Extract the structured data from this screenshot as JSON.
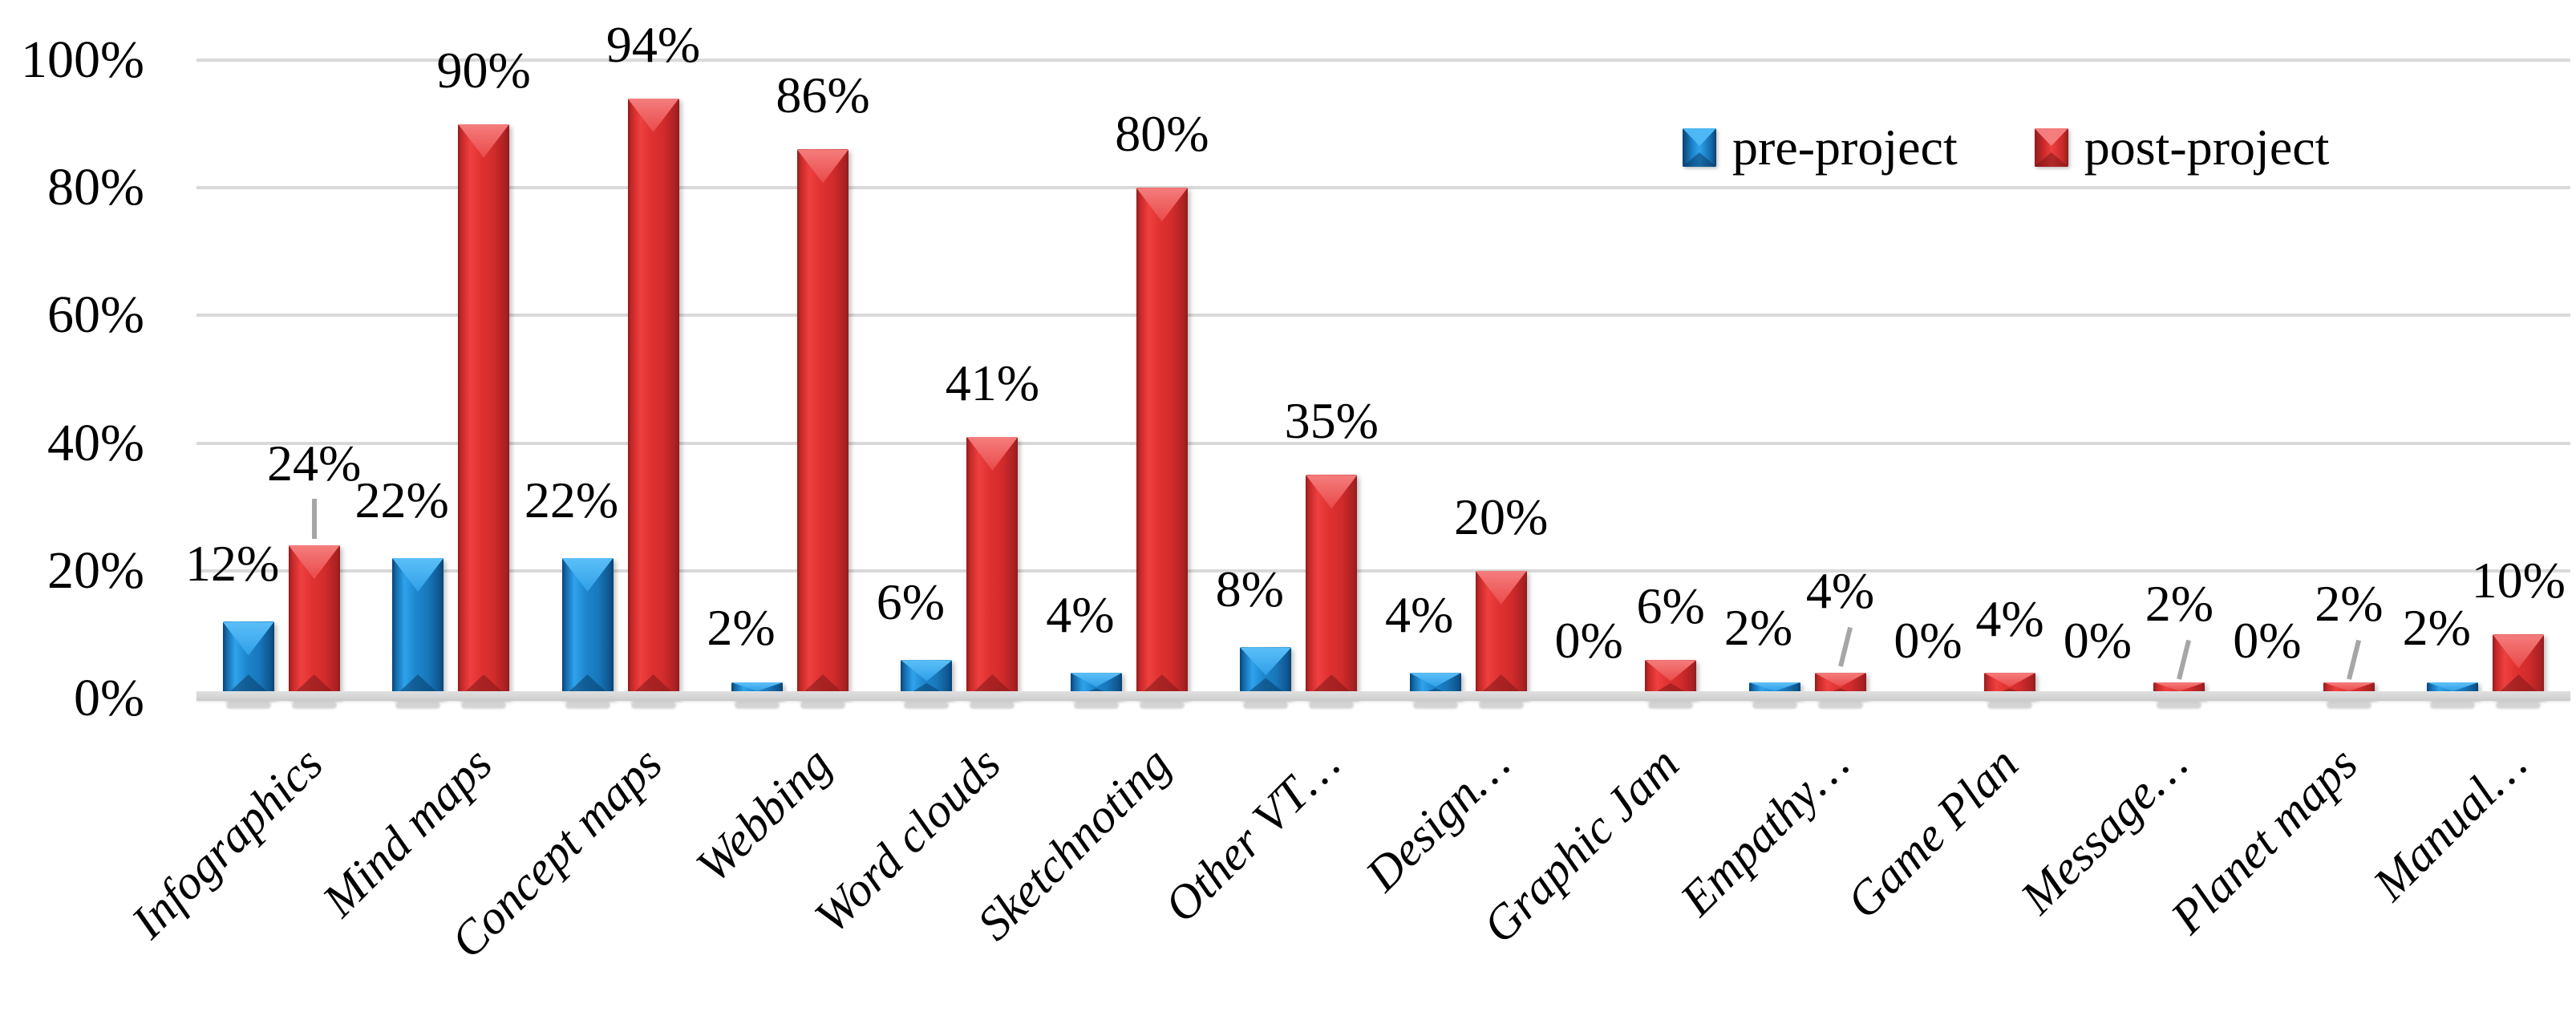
{
  "chart_data": {
    "type": "bar",
    "title": "",
    "categories": [
      "Infographics",
      "Mind maps",
      "Concept maps",
      "Webbing",
      "Word clouds",
      "Sketchnoting",
      "Other VT…",
      "Design…",
      "Graphic Jam",
      "Empathy…",
      "Game Plan",
      "Message…",
      "Planet maps",
      "Manual…"
    ],
    "series": [
      {
        "name": "pre-project",
        "color": "#1b80c4",
        "values": [
          12,
          22,
          22,
          2,
          6,
          4,
          8,
          4,
          0,
          2,
          0,
          0,
          0,
          2
        ]
      },
      {
        "name": "post-project",
        "color": "#d92f2f",
        "values": [
          24,
          90,
          94,
          86,
          41,
          80,
          35,
          20,
          6,
          4,
          4,
          2,
          2,
          10
        ]
      }
    ],
    "value_suffix": "%",
    "data_labels_shown": true,
    "yticks": [
      "0%",
      "20%",
      "40%",
      "60%",
      "80%",
      "100%"
    ],
    "ylim": [
      0,
      100
    ],
    "grid": "horizontal",
    "gridline_color": "#d9d9d9",
    "legend_position": "top-right",
    "post_leader_line_category_indexes": [
      0,
      9,
      11,
      12
    ],
    "leader_line_color": "#a6a6a6"
  }
}
